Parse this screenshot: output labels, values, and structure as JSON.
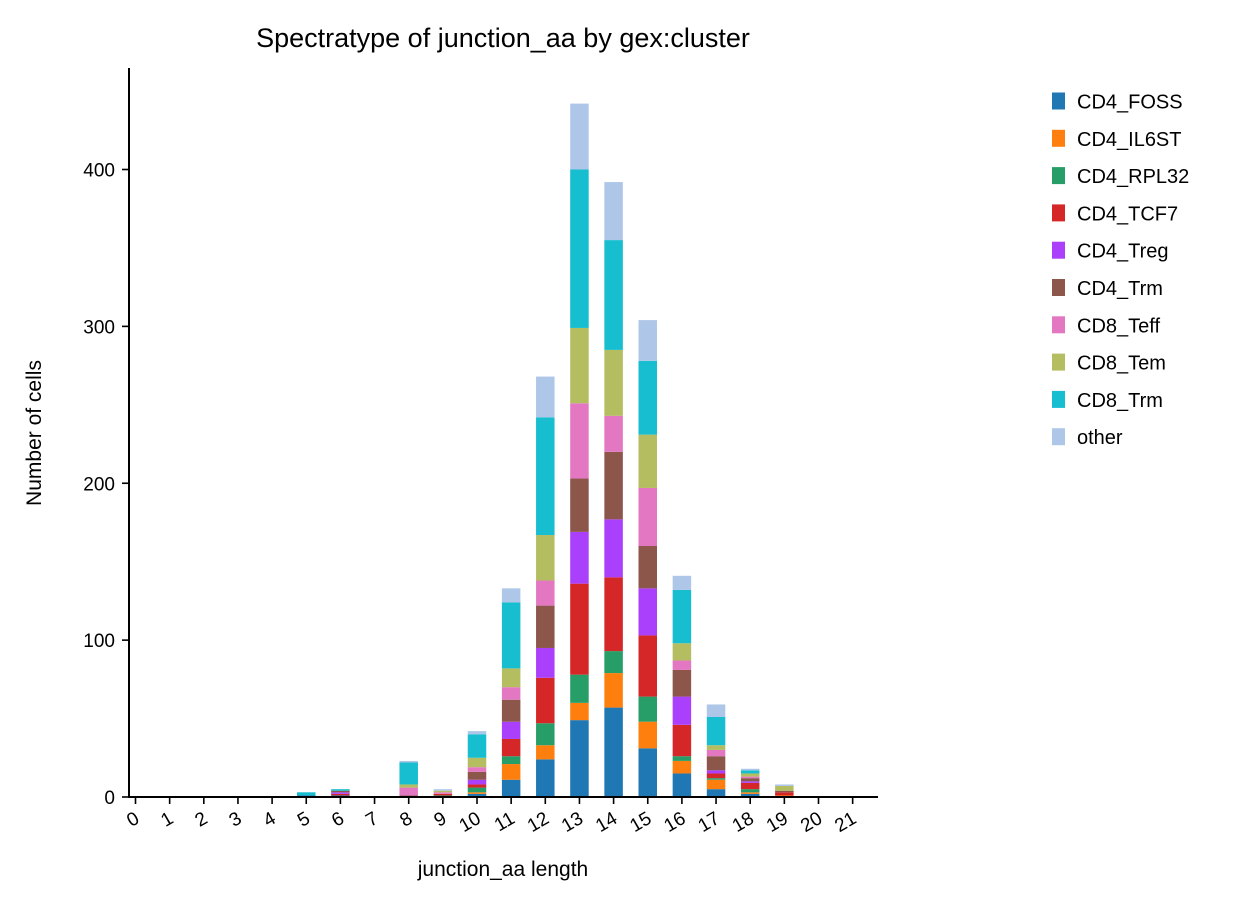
{
  "chart_data": {
    "type": "bar",
    "stacked": true,
    "title": "Spectratype of junction_aa by gex:cluster",
    "xlabel": "junction_aa length",
    "ylabel": "Number of cells",
    "ylim": [
      0,
      465
    ],
    "yticks": [
      0,
      100,
      200,
      300,
      400
    ],
    "categories": [
      "0",
      "1",
      "2",
      "3",
      "4",
      "5",
      "6",
      "7",
      "8",
      "9",
      "10",
      "11",
      "12",
      "13",
      "14",
      "15",
      "16",
      "17",
      "18",
      "19",
      "20",
      "21"
    ],
    "legend_position": "right",
    "grid": false,
    "series": [
      {
        "name": "CD4_FOSS",
        "color": "#1f77b4",
        "values": [
          0,
          0,
          0,
          0,
          0,
          1,
          1,
          0,
          0,
          0,
          2,
          11,
          24,
          49,
          57,
          31,
          15,
          5,
          2,
          0,
          0,
          0
        ]
      },
      {
        "name": "CD4_IL6ST",
        "color": "#ff7f0e",
        "values": [
          0,
          0,
          0,
          0,
          0,
          0,
          0,
          0,
          0,
          0,
          1,
          10,
          9,
          11,
          22,
          17,
          8,
          6,
          1,
          1,
          0,
          0
        ]
      },
      {
        "name": "CD4_RPL32",
        "color": "#279e68",
        "values": [
          0,
          0,
          0,
          0,
          0,
          0,
          0,
          0,
          0,
          1,
          3,
          5,
          14,
          18,
          14,
          16,
          3,
          1,
          2,
          0,
          0,
          0
        ]
      },
      {
        "name": "CD4_TCF7",
        "color": "#d62728",
        "values": [
          0,
          0,
          0,
          0,
          0,
          0,
          1,
          0,
          0,
          1,
          2,
          11,
          29,
          58,
          47,
          39,
          20,
          3,
          4,
          2,
          0,
          0
        ]
      },
      {
        "name": "CD4_Treg",
        "color": "#aa40fc",
        "values": [
          0,
          0,
          0,
          0,
          0,
          0,
          1,
          0,
          0,
          0,
          3,
          11,
          19,
          33,
          37,
          30,
          18,
          2,
          1,
          0,
          0,
          0
        ]
      },
      {
        "name": "CD4_Trm",
        "color": "#8c564b",
        "values": [
          0,
          0,
          0,
          0,
          0,
          0,
          1,
          0,
          1,
          0,
          5,
          14,
          27,
          34,
          43,
          27,
          17,
          9,
          2,
          1,
          0,
          0
        ]
      },
      {
        "name": "CD8_Teff",
        "color": "#e377c2",
        "values": [
          0,
          0,
          0,
          0,
          0,
          0,
          0,
          0,
          5,
          1,
          3,
          8,
          16,
          48,
          23,
          37,
          6,
          4,
          1,
          0,
          0,
          0
        ]
      },
      {
        "name": "CD8_Tem",
        "color": "#b5bd61",
        "values": [
          0,
          0,
          0,
          0,
          0,
          0,
          0,
          0,
          2,
          1,
          6,
          12,
          29,
          48,
          42,
          34,
          11,
          3,
          2,
          3,
          0,
          0
        ]
      },
      {
        "name": "CD8_Trm",
        "color": "#17becf",
        "values": [
          0,
          0,
          0,
          0,
          0,
          2,
          1,
          0,
          14,
          0,
          15,
          42,
          75,
          101,
          70,
          47,
          34,
          18,
          2,
          0,
          0,
          0
        ]
      },
      {
        "name": "other",
        "color": "#aec7e8",
        "values": [
          0,
          0,
          0,
          0,
          0,
          0,
          0,
          0,
          1,
          1,
          2,
          9,
          26,
          42,
          37,
          26,
          9,
          8,
          1,
          1,
          0,
          0
        ]
      }
    ]
  }
}
